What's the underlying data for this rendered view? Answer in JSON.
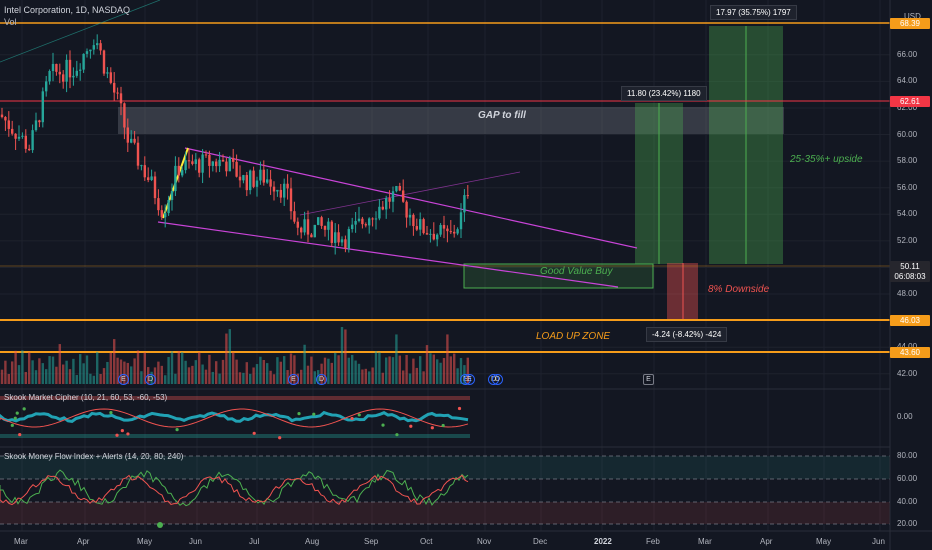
{
  "header": {
    "symbol_line": "Intel Corporation, 1D, NASDAQ",
    "vol_label": "Vol"
  },
  "currency": "USD",
  "price_axis_ticks": [
    "66.00",
    "64.00",
    "62.00",
    "60.00",
    "58.00",
    "56.00",
    "54.00",
    "52.00",
    "50.00",
    "48.00",
    "46.00",
    "44.00",
    "42.00"
  ],
  "indicator_axis_ticks": [
    "0.00",
    "80.00",
    "60.00",
    "40.00",
    "20.00"
  ],
  "time_axis": [
    "Mar",
    "Apr",
    "May",
    "Jun",
    "Jul",
    "Aug",
    "Sep",
    "Oct",
    "Nov",
    "Dec",
    "2022",
    "Feb",
    "Mar",
    "Apr",
    "May",
    "Jun"
  ],
  "price_tags": [
    {
      "label": "68.39",
      "color": "#f59c1a"
    },
    {
      "label": "62.61",
      "color": "#f23645"
    },
    {
      "label": "50.11",
      "color": "#26262d"
    },
    {
      "label": "06:08:03",
      "color": "#26262d"
    },
    {
      "label": "46.03",
      "color": "#f59c1a"
    },
    {
      "label": "43.60",
      "color": "#f59c1a"
    }
  ],
  "measurements": [
    {
      "name": "upper",
      "text": "17.97 (35.75%) 1797"
    },
    {
      "name": "middle",
      "text": "11.80 (23.42%) 1180"
    },
    {
      "name": "lower",
      "text": "-4.24 (-8.42%) -424"
    }
  ],
  "annotations": {
    "gap": "GAP to fill",
    "upside": "25-35%+ upside",
    "value_buy": "Good Value Buy",
    "downside": "8% Downside",
    "load_up": "LOAD UP ZONE"
  },
  "indicators": {
    "cipher": "Skook Market Cipher (10, 21, 60, 53, -60, -53)",
    "mfi": "Skook Money Flow Index + Alerts (14, 20, 80, 240)"
  },
  "event_markers": [
    "E",
    "D",
    "E",
    "D",
    "E",
    "D",
    "E",
    "D",
    "E"
  ],
  "colors": {
    "up": "#26a69a",
    "down": "#ef5350",
    "orange": "#f59c1a",
    "red": "#f23645",
    "magenta": "#c944d8",
    "yellow": "#ffeb3b"
  }
}
